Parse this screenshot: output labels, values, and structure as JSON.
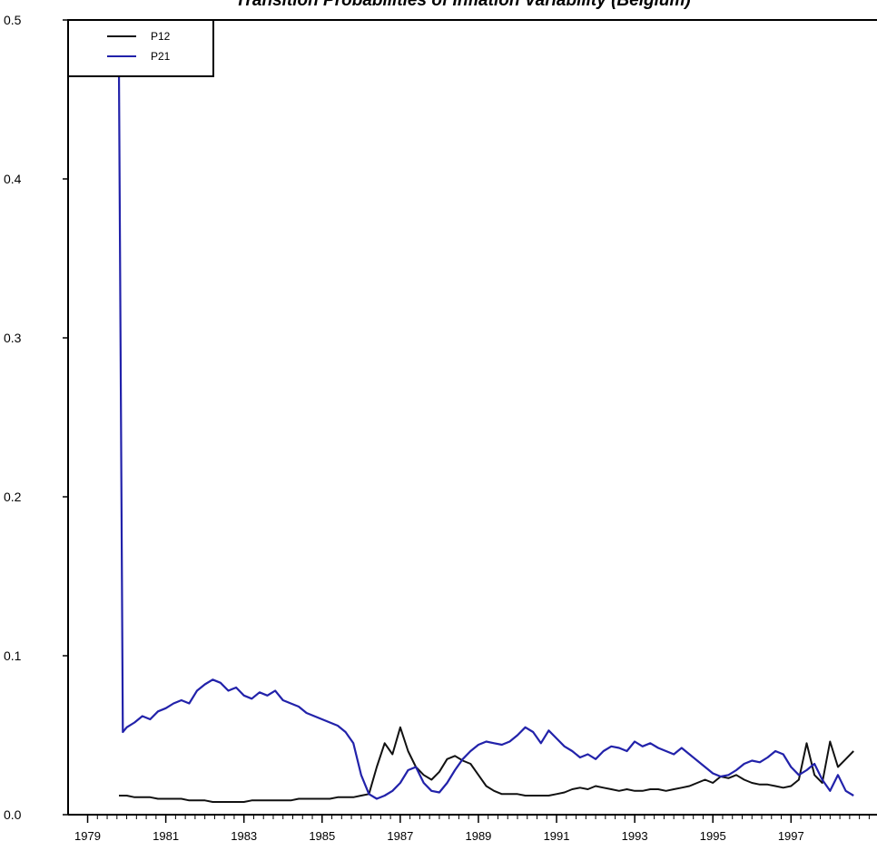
{
  "chart_data": {
    "type": "line",
    "title": "Transition Probabilities of Inflation Variability (Belgium)",
    "xlabel": "",
    "ylabel": "",
    "xlim": [
      1978.5,
      1999.2
    ],
    "ylim": [
      0,
      0.5
    ],
    "yticks": [
      0.0,
      0.1,
      0.2,
      0.3,
      0.4,
      0.5
    ],
    "ytick_labels": [
      "0.0",
      "0.1",
      "0.2",
      "0.3",
      "0.4",
      "0.5"
    ],
    "xticks": [
      1979,
      1981,
      1983,
      1985,
      1987,
      1989,
      1991,
      1993,
      1995,
      1997
    ],
    "xtick_labels": [
      "1979",
      "1981",
      "1983",
      "1985",
      "1987",
      "1989",
      "1991",
      "1993",
      "1995",
      "1997"
    ],
    "legend_position": "top-left",
    "grid": false,
    "x": [
      1979.8,
      1979.9,
      1980.0,
      1980.2,
      1980.4,
      1980.6,
      1980.8,
      1981.0,
      1981.2,
      1981.4,
      1981.6,
      1981.8,
      1982.0,
      1982.2,
      1982.4,
      1982.6,
      1982.8,
      1983.0,
      1983.2,
      1983.4,
      1983.6,
      1983.8,
      1984.0,
      1984.2,
      1984.4,
      1984.6,
      1984.8,
      1985.0,
      1985.2,
      1985.4,
      1985.6,
      1985.8,
      1986.0,
      1986.2,
      1986.4,
      1986.6,
      1986.8,
      1987.0,
      1987.2,
      1987.4,
      1987.6,
      1987.8,
      1988.0,
      1988.2,
      1988.4,
      1988.6,
      1988.8,
      1989.0,
      1989.2,
      1989.4,
      1989.6,
      1989.8,
      1990.0,
      1990.2,
      1990.4,
      1990.6,
      1990.8,
      1991.0,
      1991.2,
      1991.4,
      1991.6,
      1991.8,
      1992.0,
      1992.2,
      1992.4,
      1992.6,
      1992.8,
      1993.0,
      1993.2,
      1993.4,
      1993.6,
      1993.8,
      1994.0,
      1994.2,
      1994.4,
      1994.6,
      1994.8,
      1995.0,
      1995.2,
      1995.4,
      1995.6,
      1995.8,
      1996.0,
      1996.2,
      1996.4,
      1996.6,
      1996.8,
      1997.0,
      1997.2,
      1997.4,
      1997.6,
      1997.8,
      1998.0,
      1998.2,
      1998.4,
      1998.6
    ],
    "series": [
      {
        "name": "P12",
        "color": "#111111",
        "values": [
          0.012,
          0.012,
          0.012,
          0.011,
          0.011,
          0.011,
          0.01,
          0.01,
          0.01,
          0.01,
          0.009,
          0.009,
          0.009,
          0.008,
          0.008,
          0.008,
          0.008,
          0.008,
          0.009,
          0.009,
          0.009,
          0.009,
          0.009,
          0.009,
          0.01,
          0.01,
          0.01,
          0.01,
          0.01,
          0.011,
          0.011,
          0.011,
          0.012,
          0.013,
          0.03,
          0.045,
          0.038,
          0.055,
          0.04,
          0.03,
          0.025,
          0.022,
          0.027,
          0.035,
          0.037,
          0.034,
          0.032,
          0.025,
          0.018,
          0.015,
          0.013,
          0.013,
          0.013,
          0.012,
          0.012,
          0.012,
          0.012,
          0.013,
          0.014,
          0.016,
          0.017,
          0.016,
          0.018,
          0.017,
          0.016,
          0.015,
          0.016,
          0.015,
          0.015,
          0.016,
          0.016,
          0.015,
          0.016,
          0.017,
          0.018,
          0.02,
          0.022,
          0.02,
          0.024,
          0.023,
          0.025,
          0.022,
          0.02,
          0.019,
          0.019,
          0.018,
          0.017,
          0.018,
          0.022,
          0.045,
          0.025,
          0.02,
          0.046,
          0.03,
          0.035,
          0.04
        ]
      },
      {
        "name": "P21",
        "color": "#2222aa",
        "values": [
          0.47,
          0.052,
          0.055,
          0.058,
          0.062,
          0.06,
          0.065,
          0.067,
          0.07,
          0.072,
          0.07,
          0.078,
          0.082,
          0.085,
          0.083,
          0.078,
          0.08,
          0.075,
          0.073,
          0.077,
          0.075,
          0.078,
          0.072,
          0.07,
          0.068,
          0.064,
          0.062,
          0.06,
          0.058,
          0.056,
          0.052,
          0.045,
          0.025,
          0.013,
          0.01,
          0.012,
          0.015,
          0.02,
          0.028,
          0.03,
          0.02,
          0.015,
          0.014,
          0.02,
          0.028,
          0.035,
          0.04,
          0.044,
          0.046,
          0.045,
          0.044,
          0.046,
          0.05,
          0.055,
          0.052,
          0.045,
          0.053,
          0.048,
          0.043,
          0.04,
          0.036,
          0.038,
          0.035,
          0.04,
          0.043,
          0.042,
          0.04,
          0.046,
          0.043,
          0.045,
          0.042,
          0.04,
          0.038,
          0.042,
          0.038,
          0.034,
          0.03,
          0.026,
          0.024,
          0.025,
          0.028,
          0.032,
          0.034,
          0.033,
          0.036,
          0.04,
          0.038,
          0.03,
          0.025,
          0.028,
          0.032,
          0.022,
          0.015,
          0.025,
          0.015,
          0.012
        ]
      }
    ]
  }
}
